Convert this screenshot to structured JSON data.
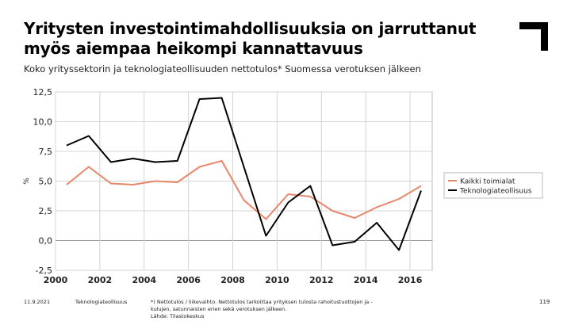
{
  "slide": {
    "title": "Yritysten investointimahdollisuuksia on jarruttanut myös aiempaa heikompi kannattavuus",
    "subtitle": "Koko yrityssektorin ja teknologiateollisuuden nettotulos* Suomessa verotuksen jälkeen",
    "footer": {
      "date": "11.9.2021",
      "org": "Teknologiateollisuus",
      "note": "*) Nettotulos / liikevaihto. Nettotulos tarkoittaa yrityksen tulosta rahoitustuottojen ja -kulujen, satunnaisten erien sekä verotuksen jälkeen.",
      "source": "Lähde: Tilastokeskus",
      "page": "119"
    }
  },
  "chart_data": {
    "type": "line",
    "title": "",
    "xlabel": "",
    "ylabel": "%",
    "xlim": [
      2000,
      2017
    ],
    "ylim": [
      -2.5,
      12.5
    ],
    "x_ticks": [
      2000,
      2002,
      2004,
      2006,
      2008,
      2010,
      2012,
      2014,
      2016
    ],
    "x_tick_labels": [
      "2000",
      "2002",
      "2004",
      "2006",
      "2008",
      "2010",
      "2012",
      "2014",
      "2016"
    ],
    "y_ticks": [
      -2.5,
      0,
      2.5,
      5,
      7.5,
      10,
      12.5
    ],
    "y_tick_labels": [
      "-2,5",
      "0,0",
      "2,5",
      "5,0",
      "7,5",
      "10,0",
      "12,5"
    ],
    "grid": true,
    "legend_position": "right",
    "x": [
      2000.5,
      2001.5,
      2002.5,
      2003.5,
      2004.5,
      2005.5,
      2006.5,
      2007.5,
      2008.5,
      2009.5,
      2010.5,
      2011.5,
      2012.5,
      2013.5,
      2014.5,
      2015.5,
      2016.5
    ],
    "series": [
      {
        "name": "Kaikki toimialat",
        "color": "#e8866a",
        "values": [
          4.7,
          6.2,
          4.8,
          4.7,
          5.0,
          4.9,
          6.2,
          6.7,
          3.4,
          1.8,
          3.9,
          3.7,
          2.5,
          1.9,
          2.8,
          3.5,
          4.6
        ]
      },
      {
        "name": "Teknologiateollisuus",
        "color": "#000000",
        "values": [
          8.0,
          8.8,
          6.6,
          6.9,
          6.6,
          6.7,
          11.9,
          12.0,
          6.2,
          0.4,
          3.2,
          4.6,
          -0.4,
          -0.1,
          1.5,
          -0.8,
          4.2
        ]
      }
    ]
  }
}
